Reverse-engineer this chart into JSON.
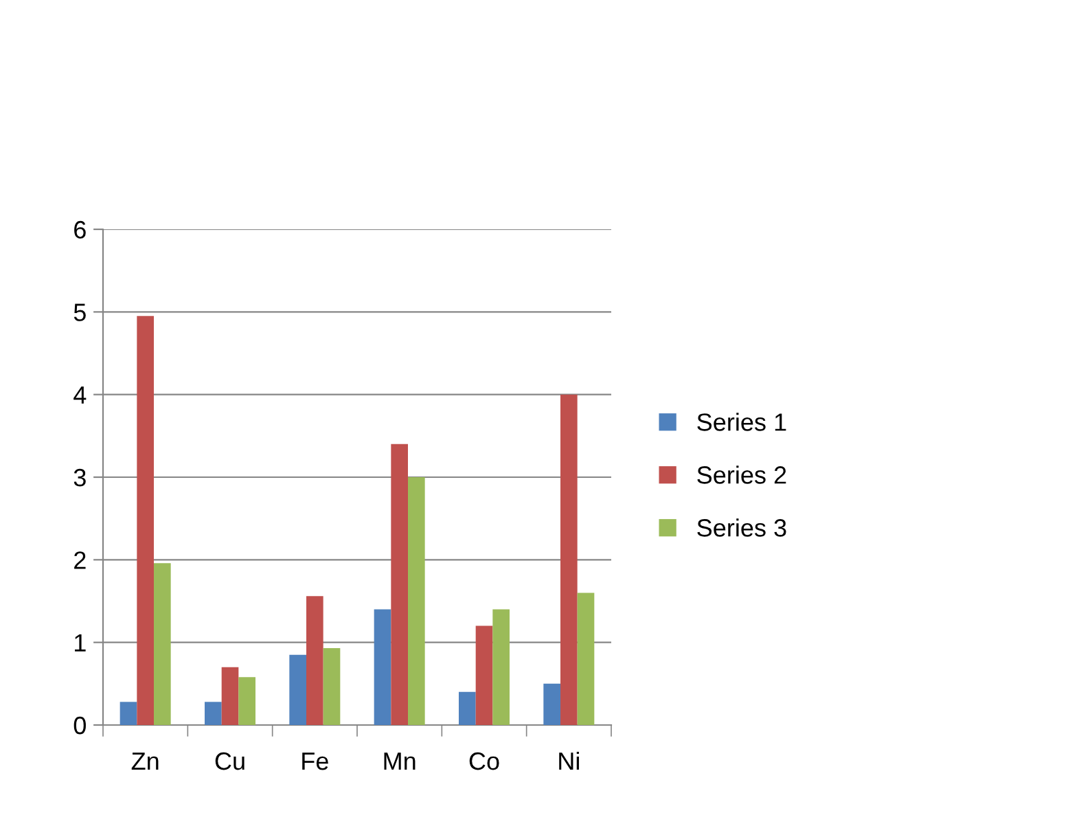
{
  "chart_data": {
    "type": "bar",
    "categories": [
      "Zn",
      "Cu",
      "Fe",
      "Mn",
      "Co",
      "Ni"
    ],
    "series": [
      {
        "name": "Series 1",
        "color": "#4f81bd",
        "values": [
          0.28,
          0.28,
          0.85,
          1.4,
          0.4,
          0.5
        ]
      },
      {
        "name": "Series 2",
        "color": "#c0504d",
        "values": [
          4.95,
          0.7,
          1.56,
          3.4,
          1.2,
          4.0
        ]
      },
      {
        "name": "Series 3",
        "color": "#9bbb59",
        "values": [
          1.96,
          0.58,
          0.93,
          3.0,
          1.4,
          1.6
        ]
      }
    ],
    "ylim": [
      0,
      6
    ],
    "yticks": [
      0,
      1,
      2,
      3,
      4,
      5,
      6
    ],
    "grid": "y",
    "legend": "right"
  }
}
